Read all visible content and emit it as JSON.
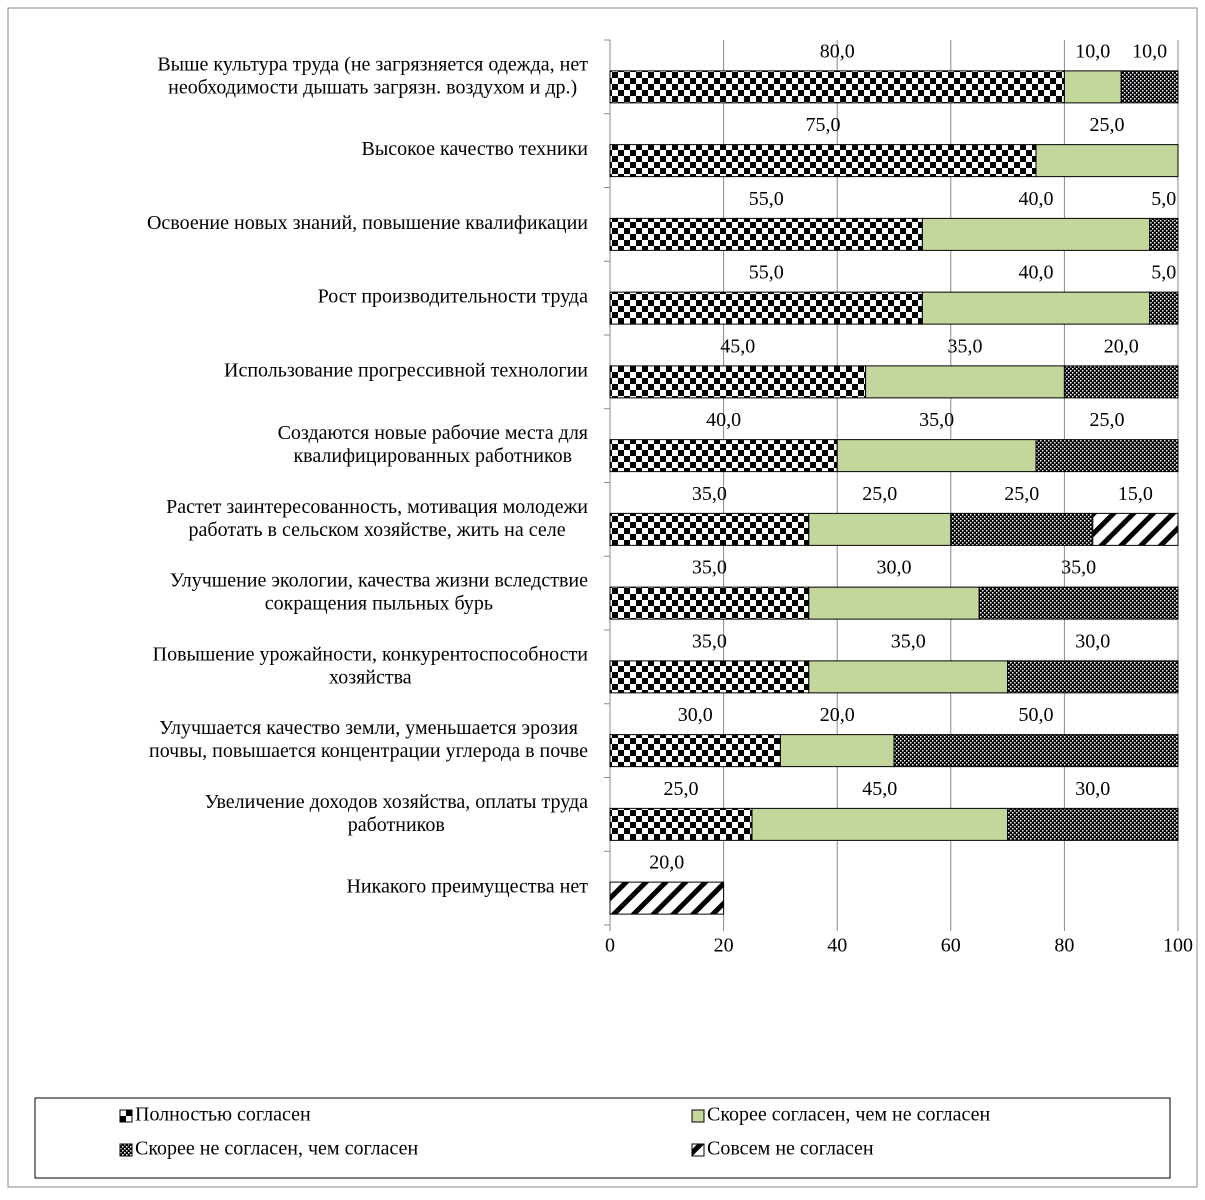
{
  "chart_data": {
    "type": "stacked_barh",
    "categories": [
      "Выше культура труда (не загрязняется одежда, нет\nнеобходимости  дышать загрязн. воздухом и др.)",
      "Высокое качество техники",
      "Освоение новых знаний, повышение квалификации",
      "Рост производительности труда",
      "Использование прогрессивной технологии",
      "Создаются новые рабочие места для\nквалифицированных работников",
      "Растет заинтересованность, мотивация молодежи\nработать в сельском хозяйстве, жить на селе",
      "Улучшение экологии, качества жизни вследствие\nсокращения пыльных бурь",
      "Повышение урожайности, конкурентоспособности\nхозяйства",
      "Улучшается качество земли, уменьшается эрозия\nпочвы, повышается концентрации углерода в почве",
      "Увеличение доходов хозяйства, оплаты труда\nработников",
      "Никакого преимущества нет"
    ],
    "series": [
      {
        "name": "Полностью согласен",
        "color": "#000000",
        "pattern": "checker",
        "values": [
          80,
          75,
          55,
          55,
          45,
          40,
          35,
          35,
          35,
          30,
          25,
          null
        ],
        "value_labels": [
          "80,0",
          "75,0",
          "55,0",
          "55,0",
          "45,0",
          "40,0",
          "35,0",
          "35,0",
          "35,0",
          "30,0",
          "25,0",
          null
        ]
      },
      {
        "name": "Скорее согласен, чем не согласен",
        "color": "#c3d69b",
        "pattern": null,
        "values": [
          10,
          25,
          40,
          40,
          35,
          35,
          25,
          30,
          35,
          20,
          45,
          null
        ],
        "value_labels": [
          "10,0",
          "25,0",
          "40,0",
          "40,0",
          "35,0",
          "35,0",
          "25,0",
          "30,0",
          "35,0",
          "20,0",
          "45,0",
          null
        ]
      },
      {
        "name": "Скорее не согласен, чем согласен",
        "color": "#000000",
        "pattern": "dense",
        "values": [
          10,
          null,
          5,
          5,
          20,
          25,
          25,
          35,
          30,
          50,
          30,
          null
        ],
        "value_labels": [
          "10,0",
          null,
          "5,0",
          "5,0",
          "20,0",
          "25,0",
          "25,0",
          "35,0",
          "30,0",
          "50,0",
          "30,0",
          null
        ]
      },
      {
        "name": "Совсем не согласен",
        "color": "#000000",
        "pattern": "hatch",
        "values": [
          null,
          null,
          null,
          null,
          null,
          null,
          15,
          null,
          null,
          null,
          null,
          20
        ],
        "value_labels": [
          null,
          null,
          null,
          null,
          null,
          null,
          "15,0",
          null,
          null,
          null,
          null,
          "20,0"
        ]
      }
    ],
    "xlim": [
      0,
      100
    ],
    "xticks": [
      0,
      20,
      40,
      60,
      80,
      100
    ],
    "grid": true
  }
}
